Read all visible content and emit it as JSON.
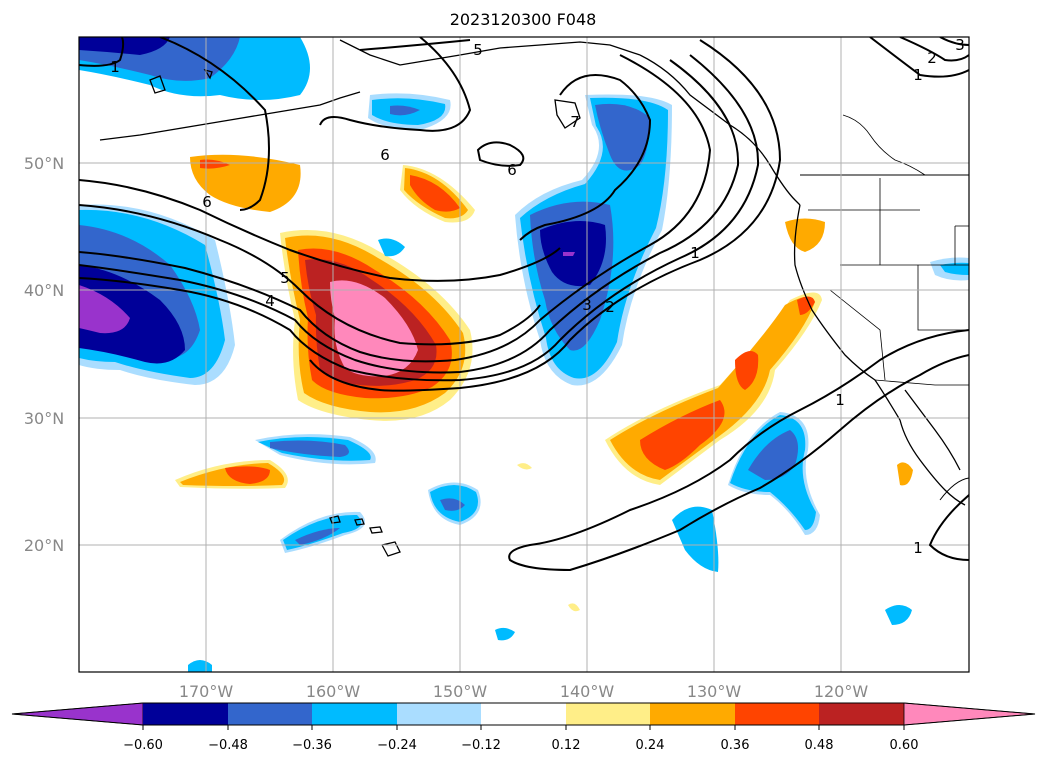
{
  "title": "2023120300 F048",
  "lat_labels": [
    "50°N",
    "40°N",
    "30°N",
    "20°N"
  ],
  "lon_labels": [
    "170°W",
    "160°W",
    "150°W",
    "140°W",
    "130°W",
    "120°W"
  ],
  "colorbar": {
    "tick_labels": [
      "−0.60",
      "−0.48",
      "−0.36",
      "−0.24",
      "−0.12",
      "0.12",
      "0.24",
      "0.36",
      "0.48",
      "0.60"
    ],
    "colors": [
      "#9933cc",
      "#000099",
      "#3366cc",
      "#00bbff",
      "#aaddff",
      "#ffffff",
      "#ffee88",
      "#ffaa00",
      "#ff4400",
      "#bb2222",
      "#ff88bb"
    ]
  },
  "contour_labels": [
    "1",
    "2",
    "3",
    "4",
    "5",
    "6",
    "7"
  ]
}
